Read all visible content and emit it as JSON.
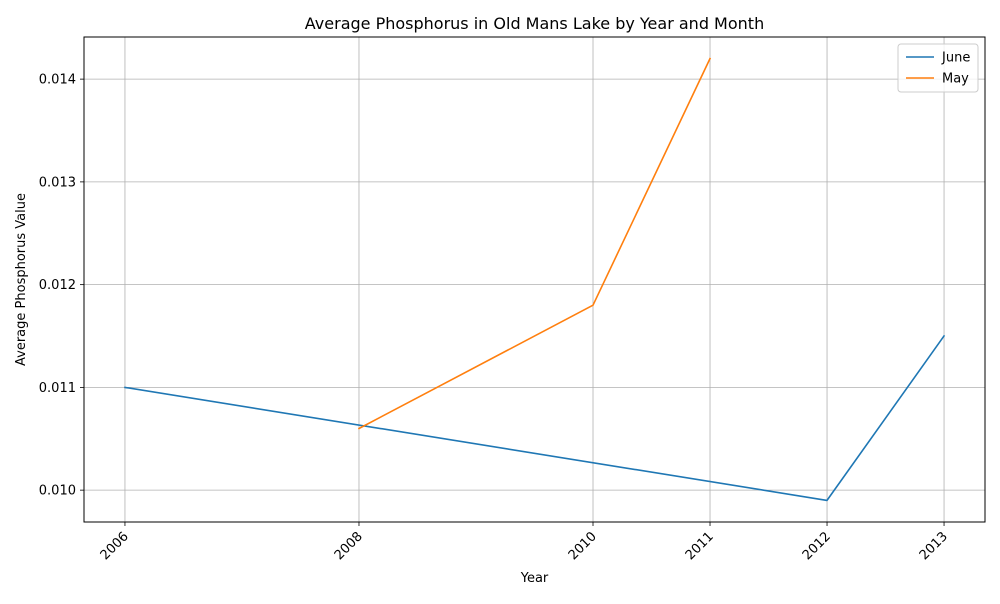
{
  "chart_data": {
    "type": "line",
    "title": "Average Phosphorus in Old Mans Lake by Year and Month",
    "xlabel": "Year",
    "ylabel": "Average Phosphorus Value",
    "x_ticks": [
      2006,
      2008,
      2010,
      2011,
      2012,
      2013
    ],
    "y_ticks": [
      "0.010",
      "0.011",
      "0.012",
      "0.013",
      "0.014"
    ],
    "y_tick_values": [
      0.01,
      0.011,
      0.012,
      0.013,
      0.014
    ],
    "xlim": [
      2005.65,
      2013.35
    ],
    "ylim": [
      0.00969,
      0.01441
    ],
    "grid": true,
    "legend_position": "top-right",
    "series": [
      {
        "name": "June",
        "color": "#1f77b4",
        "points": [
          [
            2006,
            0.011
          ],
          [
            2012,
            0.0099
          ],
          [
            2013,
            0.0115
          ]
        ]
      },
      {
        "name": "May",
        "color": "#ff7f0e",
        "points": [
          [
            2008,
            0.0106
          ],
          [
            2010,
            0.0118
          ],
          [
            2011,
            0.0142
          ]
        ]
      }
    ]
  }
}
